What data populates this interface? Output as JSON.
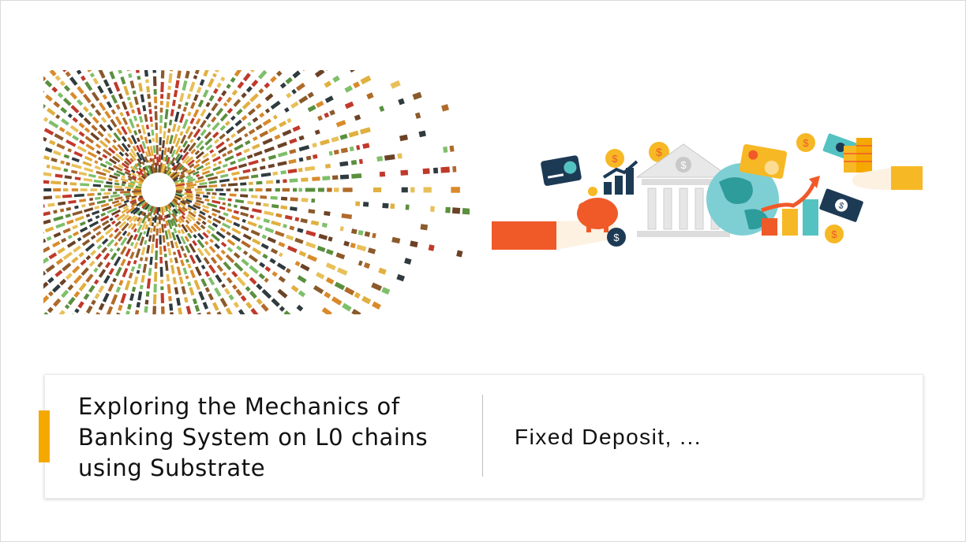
{
  "slide": {
    "title_lines": [
      "Exploring the Mechanics of",
      "Banking System on L0 chains",
      "using Substrate"
    ],
    "subtitle": "Fixed Deposit, ..."
  },
  "colors": {
    "accent": "#f5a800",
    "sunburst_palette": [
      "#8b5a2b",
      "#d98a2b",
      "#e0b040",
      "#c0392b",
      "#5a8f3e",
      "#2f3b3f",
      "#7fbf6a",
      "#b06a2a",
      "#e8c05a",
      "#6b4226"
    ],
    "finance_orange": "#f05a28",
    "finance_yellow": "#f7b825",
    "finance_teal": "#55c2c2",
    "finance_navy": "#1d3a55"
  },
  "icons": [
    "sunburst-pattern-illustration",
    "finance-illustration",
    "bank-building-icon",
    "piggy-bank-icon",
    "credit-card-icon",
    "dollar-coin-icon",
    "globe-icon",
    "growth-chart-icon",
    "banknote-icon",
    "coin-stack-icon"
  ]
}
